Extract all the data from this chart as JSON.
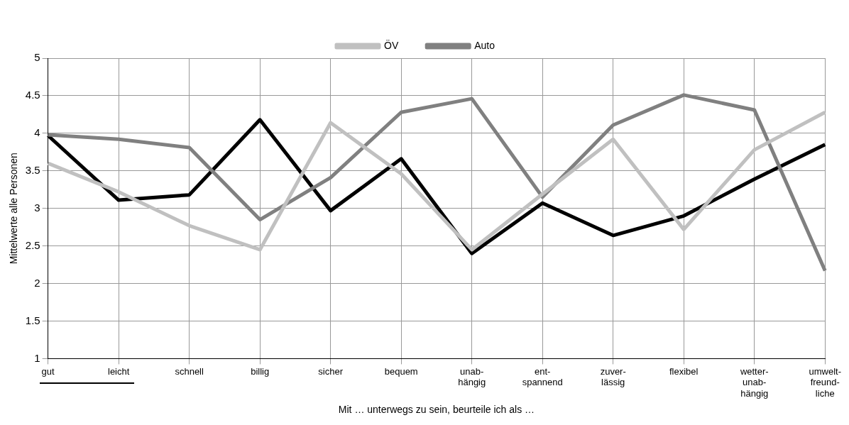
{
  "chart_data": {
    "type": "line",
    "xlabel": "Mit … unterwegs zu sein, beurteile ich als …",
    "ylabel": "Mittelwerte alle Personen",
    "categories": [
      "gut",
      "leicht",
      "schnell",
      "billig",
      "sicher",
      "bequem",
      "unab-\nhängig",
      "ent-\nspannend",
      "zuver-\nlässig",
      "flexibel",
      "wetter-\nunab-\nhängig",
      "umwelt-\nfreund-\nliche"
    ],
    "series": [
      {
        "name": "ÖV",
        "color": "#c0c0c0",
        "values": [
          3.6,
          3.22,
          2.77,
          2.45,
          4.14,
          3.46,
          2.45,
          3.19,
          3.92,
          2.72,
          3.78,
          4.28
        ]
      },
      {
        "name": "Auto",
        "color": "#808080",
        "values": [
          3.98,
          3.92,
          3.81,
          2.85,
          3.41,
          4.28,
          4.46,
          3.15,
          4.11,
          4.51,
          4.31,
          2.17
        ]
      },
      {
        "color": "#000000",
        "values": [
          3.97,
          3.11,
          3.18,
          4.18,
          2.97,
          3.66,
          2.4,
          3.07,
          2.64,
          2.9,
          3.39,
          3.85
        ]
      }
    ],
    "ylim": [
      1,
      5
    ],
    "yticks": [
      1,
      1.5,
      2,
      2.5,
      3,
      3.5,
      4,
      4.5,
      5
    ],
    "grid": true,
    "legend": "top",
    "marker": "none",
    "line_style": "solid"
  }
}
